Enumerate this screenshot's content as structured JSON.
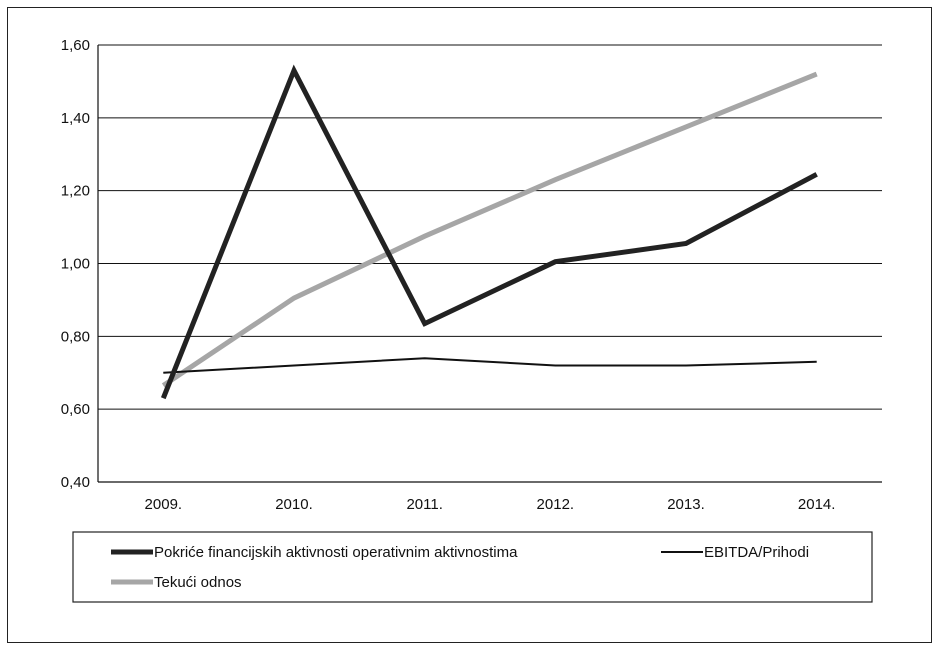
{
  "chart_data": {
    "type": "line",
    "title": "",
    "xlabel": "",
    "ylabel": "",
    "categories": [
      "2009.",
      "2010.",
      "2011.",
      "2012.",
      "2013.",
      "2014."
    ],
    "ylim": [
      0.4,
      1.6
    ],
    "yticks": [
      "0,40",
      "0,60",
      "0,80",
      "1,00",
      "1,20",
      "1,40",
      "1,60"
    ],
    "ytick_values": [
      0.4,
      0.6,
      0.8,
      1.0,
      1.2,
      1.4,
      1.6
    ],
    "grid": "horizontal",
    "legend_position": "bottom",
    "series": [
      {
        "name": "Pokriće financijskih aktivnosti operativnim aktivnostima",
        "values": [
          0.63,
          1.53,
          0.835,
          1.005,
          1.055,
          1.245
        ],
        "color": "#222222",
        "style": "thick"
      },
      {
        "name": "EBITDA/Prihodi",
        "values": [
          0.7,
          0.72,
          0.74,
          0.72,
          0.72,
          0.73
        ],
        "color": "#111111",
        "style": "thin"
      },
      {
        "name": "Tekući odnos",
        "values": [
          0.665,
          0.905,
          1.075,
          1.23,
          1.375,
          1.52
        ],
        "color": "#a6a6a6",
        "style": "thick"
      }
    ]
  }
}
